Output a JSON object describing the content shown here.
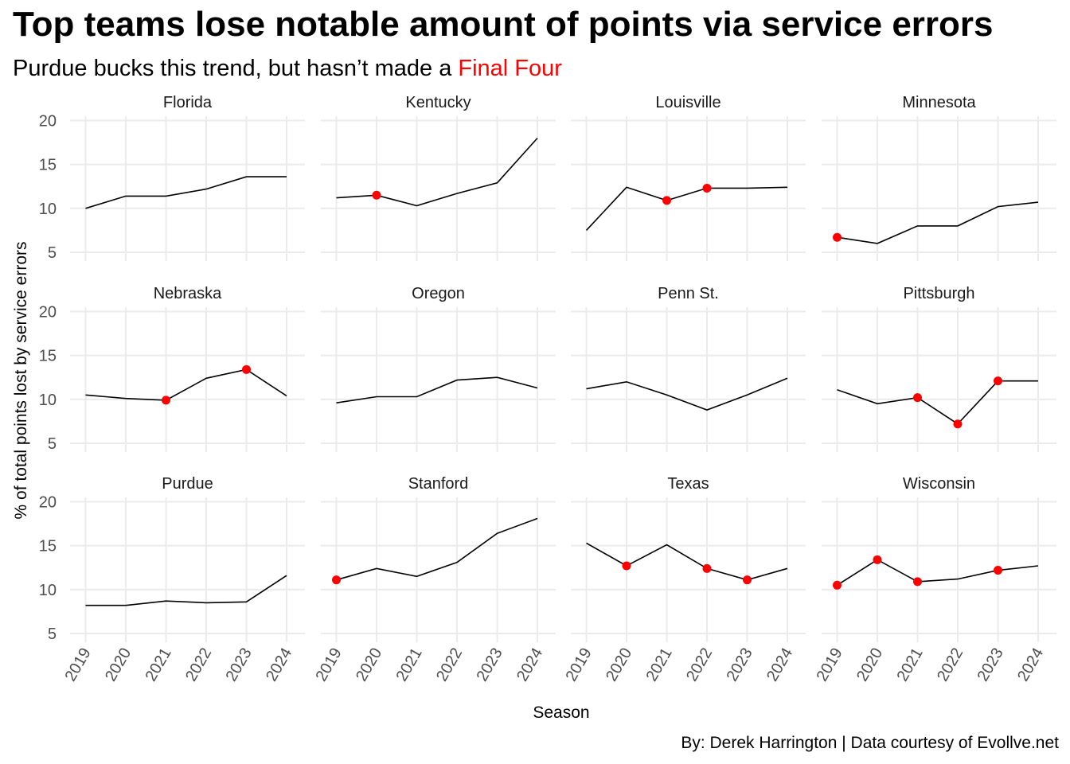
{
  "title": "Top teams lose notable amount of points via service errors",
  "subtitle": {
    "prefix": "Purdue bucks this trend, but hasn’t made a ",
    "highlight": "Final Four"
  },
  "caption": "By: Derek Harrington  |  Data courtesy of Evollve.net",
  "chart_data": {
    "type": "line",
    "layout": "facet-grid 3x4",
    "xlabel": "Season",
    "ylabel": "% of total points lost by service errors",
    "x": [
      2019,
      2020,
      2021,
      2022,
      2023,
      2024
    ],
    "ylim": [
      4,
      20.5
    ],
    "yticks": [
      5,
      10,
      15,
      20
    ],
    "grid": true,
    "line_color": "#000000",
    "marker_color": "#ff0000",
    "panels": [
      {
        "team": "Florida",
        "values": [
          10.0,
          11.4,
          11.4,
          12.2,
          13.6,
          13.6
        ],
        "final_four": [
          false,
          false,
          false,
          false,
          false,
          false
        ]
      },
      {
        "team": "Kentucky",
        "values": [
          11.2,
          11.5,
          10.3,
          11.7,
          12.9,
          18.0
        ],
        "final_four": [
          false,
          true,
          false,
          false,
          false,
          false
        ]
      },
      {
        "team": "Louisville",
        "values": [
          7.5,
          12.4,
          10.9,
          12.3,
          12.3,
          12.4
        ],
        "final_four": [
          false,
          false,
          true,
          true,
          false,
          false
        ]
      },
      {
        "team": "Minnesota",
        "values": [
          6.7,
          6.0,
          8.0,
          8.0,
          10.2,
          10.7
        ],
        "final_four": [
          true,
          false,
          false,
          false,
          false,
          false
        ]
      },
      {
        "team": "Nebraska",
        "values": [
          10.5,
          10.1,
          9.9,
          12.4,
          13.4,
          10.4
        ],
        "final_four": [
          false,
          false,
          true,
          false,
          true,
          false
        ]
      },
      {
        "team": "Oregon",
        "values": [
          9.6,
          10.3,
          10.3,
          12.2,
          12.5,
          11.3
        ],
        "final_four": [
          false,
          false,
          false,
          false,
          false,
          false
        ]
      },
      {
        "team": "Penn St.",
        "values": [
          11.2,
          12.0,
          10.5,
          8.8,
          10.5,
          12.4
        ],
        "final_four": [
          false,
          false,
          false,
          false,
          false,
          false
        ]
      },
      {
        "team": "Pittsburgh",
        "values": [
          11.1,
          9.5,
          10.2,
          7.2,
          12.1,
          12.1
        ],
        "final_four": [
          false,
          false,
          true,
          true,
          true,
          false
        ]
      },
      {
        "team": "Purdue",
        "values": [
          8.2,
          8.2,
          8.7,
          8.5,
          8.6,
          11.6
        ],
        "final_four": [
          false,
          false,
          false,
          false,
          false,
          false
        ]
      },
      {
        "team": "Stanford",
        "values": [
          11.1,
          12.4,
          11.5,
          13.1,
          16.4,
          18.1
        ],
        "final_four": [
          true,
          false,
          false,
          false,
          false,
          false
        ]
      },
      {
        "team": "Texas",
        "values": [
          15.3,
          12.7,
          15.1,
          12.4,
          11.1,
          12.4
        ],
        "final_four": [
          false,
          true,
          false,
          true,
          true,
          false
        ]
      },
      {
        "team": "Wisconsin",
        "values": [
          10.5,
          13.4,
          10.9,
          11.2,
          12.2,
          12.7
        ],
        "final_four": [
          true,
          true,
          true,
          false,
          true,
          false
        ]
      }
    ]
  }
}
